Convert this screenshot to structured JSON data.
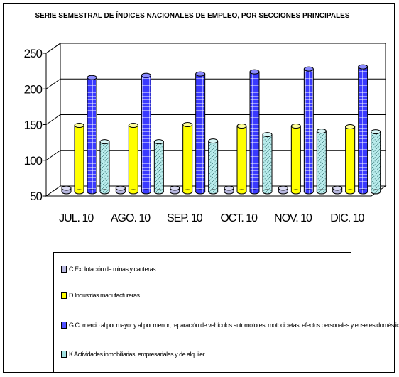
{
  "chart_data": {
    "type": "bar",
    "title": "SERIE SEMESTRAL DE ÍNDICES NACIONALES DE EMPLEO, POR SECCIONES PRINCIPALES",
    "categories": [
      "JUL. 10",
      "AGO. 10",
      "SEP. 10",
      "OCT. 10",
      "NOV. 10",
      "DIC. 10"
    ],
    "y_ticks": [
      "50",
      "100",
      "150",
      "200",
      "250"
    ],
    "ylim": [
      50,
      250
    ],
    "grid": true,
    "legend_position": "bottom",
    "series": [
      {
        "name": "C Explotación de minas y canteras",
        "values": [
          55,
          55,
          55,
          55,
          55,
          55
        ],
        "color": "#b8b8e0"
      },
      {
        "name": "D Industrias manufactureras",
        "values": [
          143,
          143,
          144,
          142,
          142,
          141
        ],
        "color": "#ffff00"
      },
      {
        "name": "G Comercio al por mayor y al por menor; reparación de vehículos automotores, motocicletas, efectos personales y enseres domésticos",
        "values": [
          210,
          213,
          215,
          218,
          222,
          225
        ],
        "color": "#5050ff"
      },
      {
        "name": "K Actividades inmobiliarias, empresariales y de alquiler",
        "values": [
          120,
          120,
          121,
          130,
          135,
          134
        ],
        "color": "#a0e0e0"
      }
    ]
  }
}
